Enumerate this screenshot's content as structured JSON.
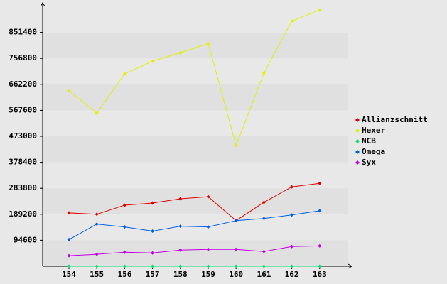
{
  "chart_data": {
    "type": "line",
    "categories": [
      "154",
      "155",
      "156",
      "157",
      "158",
      "159",
      "160",
      "161",
      "162",
      "163"
    ],
    "series": [
      {
        "name": "Allianzschnitt",
        "color": "#e00000",
        "values": [
          194300,
          189200,
          222400,
          230100,
          245400,
          253100,
          166200,
          232700,
          288900,
          301700
        ]
      },
      {
        "name": "Hexer",
        "color": "#e0f000",
        "values": [
          639200,
          557400,
          700500,
          746600,
          777300,
          810500,
          439800,
          703100,
          892300,
          933200
        ]
      },
      {
        "name": "NCB",
        "color": "#00e070",
        "values": [
          0,
          0,
          0,
          0,
          0,
          0,
          0,
          0,
          0,
          0
        ]
      },
      {
        "name": "Omega",
        "color": "#0060e0",
        "values": [
          97200,
          153400,
          143200,
          127800,
          145700,
          143200,
          166200,
          173900,
          186600,
          202000
        ]
      },
      {
        "name": "Syx",
        "color": "#c000e0",
        "values": [
          38400,
          43500,
          51100,
          48600,
          58800,
          61400,
          61400,
          53700,
          71600,
          74100
        ]
      }
    ],
    "ylim": [
      0,
      946000
    ],
    "yticks": [
      94600,
      189200,
      283800,
      378400,
      473000,
      567600,
      662200,
      756800,
      851400
    ],
    "legend": "right"
  }
}
